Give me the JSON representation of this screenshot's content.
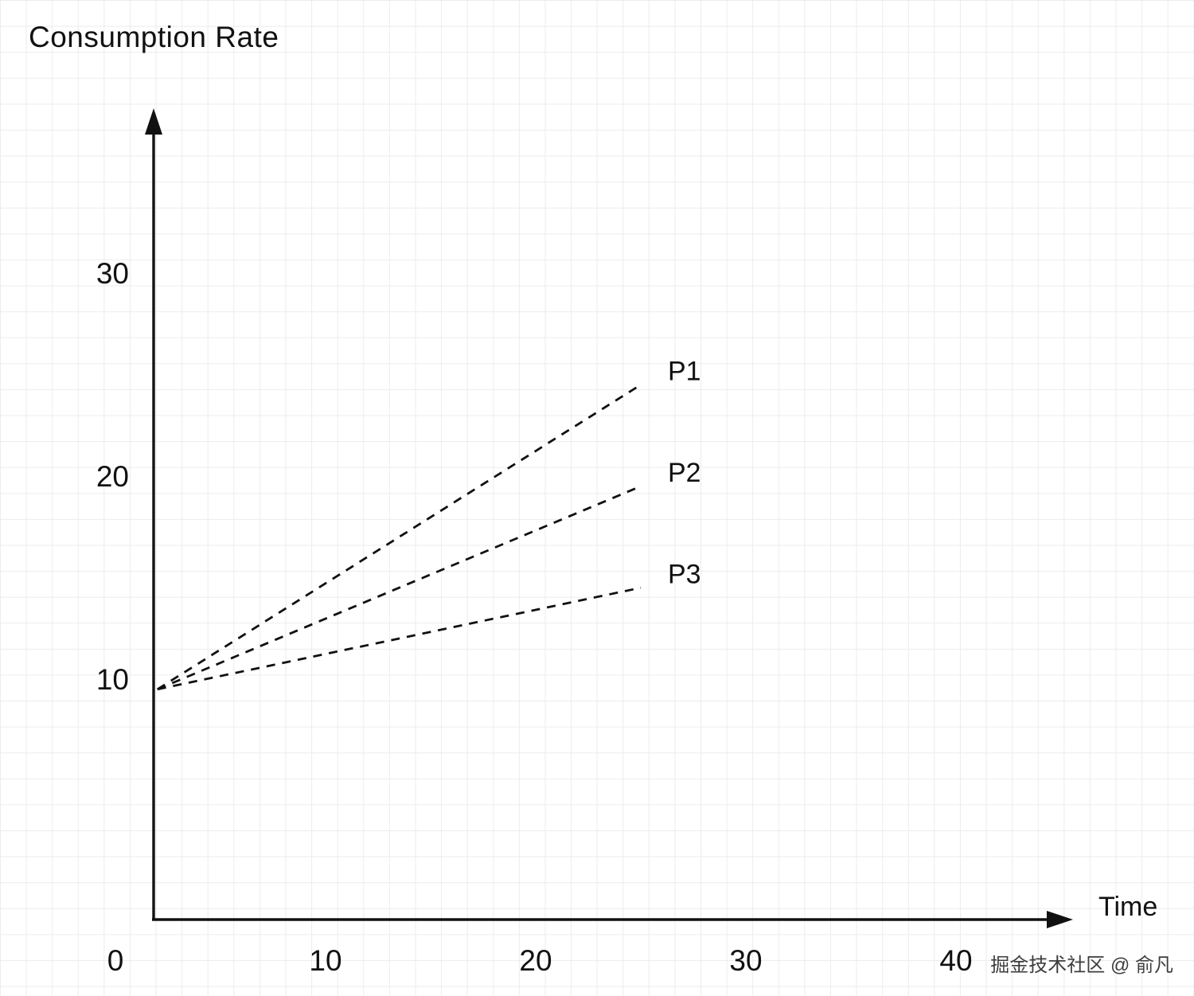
{
  "watermark": "掘金技术社区 @ 俞凡",
  "chart_data": {
    "type": "line",
    "title": "Consumption Rate",
    "xlabel": "Time",
    "ylabel": "Consumption Rate",
    "x_ticks": [
      0,
      10,
      20,
      30,
      40
    ],
    "y_ticks": [
      10,
      20,
      30
    ],
    "xlim": [
      0,
      45
    ],
    "ylim": [
      0,
      38
    ],
    "grid": true,
    "line_style": "dashed",
    "legend_position": "end-of-line",
    "series": [
      {
        "name": "P1",
        "points": [
          [
            2,
            9.5
          ],
          [
            25,
            24.5
          ]
        ]
      },
      {
        "name": "P2",
        "points": [
          [
            2,
            9.5
          ],
          [
            25,
            19.5
          ]
        ]
      },
      {
        "name": "P3",
        "points": [
          [
            2,
            9.5
          ],
          [
            25,
            14.5
          ]
        ]
      }
    ],
    "colors": {
      "axis": "#111111",
      "line": "#111111",
      "text": "#111111",
      "grid": "#ececec",
      "watermark": "#3d3d3d",
      "background": "#ffffff"
    }
  }
}
